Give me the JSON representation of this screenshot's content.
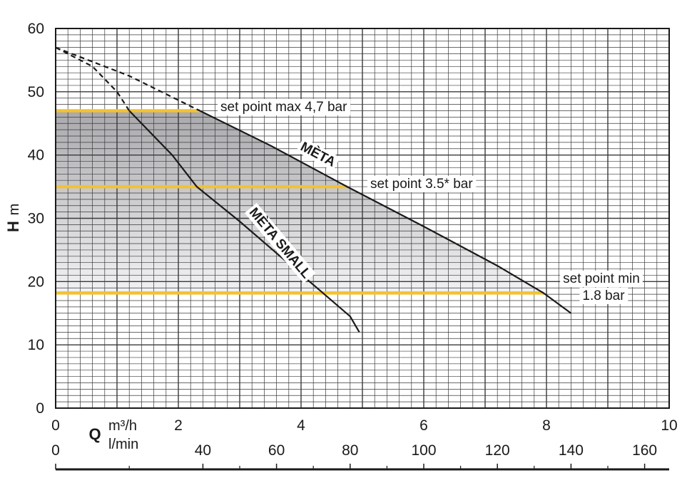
{
  "chart_data": {
    "type": "line",
    "x_axis": {
      "label": "Q",
      "unit_primary": "m³/h",
      "unit_secondary": "l/min",
      "xlim": [
        0,
        10
      ],
      "ticks": [
        0,
        2,
        4,
        6,
        8,
        10
      ],
      "ticks_secondary": [
        0,
        40,
        60,
        80,
        100,
        120,
        140,
        160
      ],
      "ticks_secondary_m3h": [
        0,
        2.4,
        3.6,
        4.8,
        6.0,
        7.2,
        8.4,
        9.6
      ]
    },
    "y_axis": {
      "label": "H",
      "unit": "m",
      "ylim": [
        0,
        60
      ],
      "ticks": [
        0,
        10,
        20,
        30,
        40,
        50,
        60
      ]
    },
    "grid": true,
    "series": [
      {
        "name": "MÈTA",
        "solid": [
          [
            2.35,
            47
          ],
          [
            3.5,
            41.5
          ],
          [
            4.75,
            35
          ],
          [
            6,
            28.7
          ],
          [
            7.2,
            22.5
          ],
          [
            7.95,
            18.2
          ],
          [
            8.4,
            15
          ]
        ],
        "dashed": [
          [
            0,
            57
          ],
          [
            1.2,
            52.5
          ],
          [
            2.35,
            47
          ]
        ]
      },
      {
        "name": "MÈTA SMALL",
        "solid": [
          [
            1.2,
            47
          ],
          [
            1.9,
            40
          ],
          [
            2.3,
            35
          ],
          [
            3,
            29.5
          ],
          [
            3.6,
            24.5
          ],
          [
            4.2,
            19.5
          ],
          [
            4.8,
            14.5
          ],
          [
            4.95,
            12
          ]
        ],
        "dashed": [
          [
            0,
            57
          ],
          [
            0.6,
            54
          ],
          [
            1.0,
            50
          ],
          [
            1.2,
            47
          ]
        ]
      }
    ],
    "set_points": [
      {
        "label": "set point max 4,7 bar",
        "h": 47,
        "x_from": 0,
        "x_to": 2.35
      },
      {
        "label": "set point 3.5* bar",
        "h": 35,
        "x_from": 0,
        "x_to": 4.75
      },
      {
        "label_line1": "set point min",
        "label_line2": "1.8 bar",
        "h": 18.2,
        "x_from": 0,
        "x_to": 7.95
      }
    ],
    "colors": {
      "grid": "#3a3a3a",
      "curve": "#1a1a1a",
      "set_point": "#f2c230",
      "region_top": "#a9a9ad",
      "region_bottom": "#f2f2f4"
    }
  }
}
